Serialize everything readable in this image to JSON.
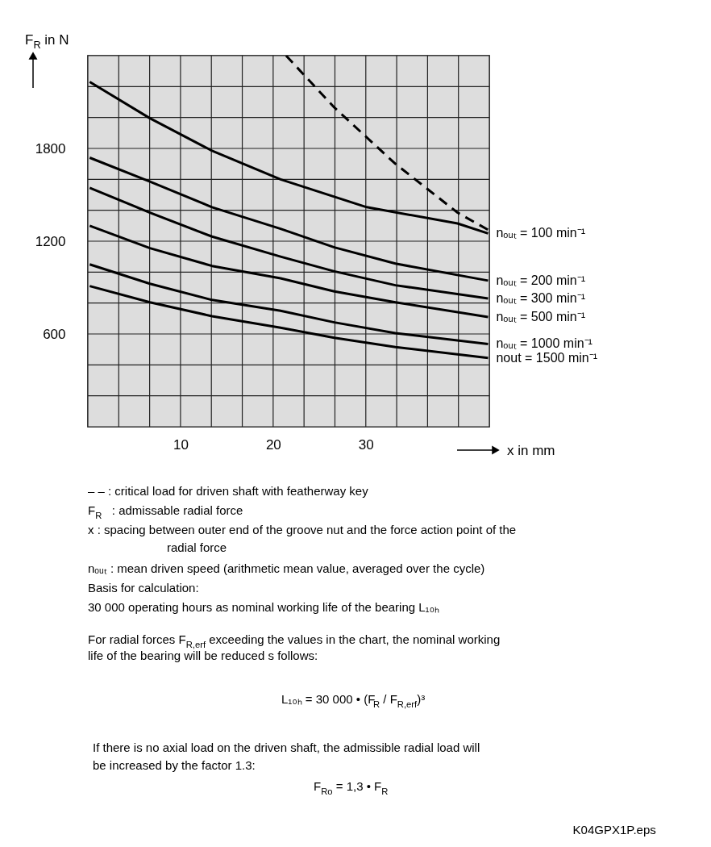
{
  "chart_data": {
    "type": "line",
    "xlabel": "x in mm",
    "ylabel": "F$_{R}$ in N",
    "xlim": [
      0,
      43.333
    ],
    "ylim": [
      0,
      2400
    ],
    "xticks": [
      {
        "value": 0,
        "label": null
      },
      {
        "value": 3.333,
        "label": null
      },
      {
        "value": 6.667,
        "label": null
      },
      10,
      {
        "value": 13.333,
        "label": null
      },
      {
        "value": 16.667,
        "label": null
      },
      20,
      {
        "value": 23.333,
        "label": null
      },
      {
        "value": 26.667,
        "label": null
      },
      30,
      {
        "value": 33.333,
        "label": null
      },
      {
        "value": 36.667,
        "label": null
      },
      {
        "value": 40,
        "label": null
      },
      {
        "value": 43.333,
        "label": null
      }
    ],
    "yticks": [
      {
        "value": 0,
        "label": null
      },
      {
        "value": 200,
        "label": null
      },
      {
        "value": 400,
        "label": null
      },
      600,
      {
        "value": 800,
        "label": null
      },
      {
        "value": 1000,
        "label": null
      },
      1200,
      {
        "value": 1400,
        "label": null
      },
      {
        "value": 1600,
        "label": null
      },
      1800,
      {
        "value": 2000,
        "label": null
      },
      {
        "value": 2200,
        "label": null
      },
      {
        "value": 2400,
        "label": null
      }
    ],
    "grid": true,
    "legend": false,
    "marker": "none",
    "series": [
      {
        "name": "nₒᵤₜ = 100 min⁻¹",
        "color": "#000000",
        "line_style": "solid",
        "x": [
          0.2,
          6.7,
          13.4,
          20.8,
          30.1,
          39.9,
          43.2
        ],
        "values": [
          2230,
          1995,
          1785,
          1600,
          1420,
          1315,
          1250
        ]
      },
      {
        "name": "nₒᵤₜ = 200 min⁻¹",
        "color": "#000000",
        "line_style": "solid",
        "x": [
          0.2,
          6.7,
          13.4,
          20.8,
          26.6,
          33.2,
          43.2
        ],
        "values": [
          1740,
          1585,
          1420,
          1280,
          1160,
          1055,
          945
        ]
      },
      {
        "name": "nₒᵤₜ = 300 min⁻¹",
        "color": "#000000",
        "line_style": "solid",
        "x": [
          0.2,
          6.7,
          13.4,
          20.8,
          26.6,
          33.2,
          43.2
        ],
        "values": [
          1545,
          1385,
          1230,
          1100,
          1005,
          915,
          830
        ]
      },
      {
        "name": "nₒᵤₜ = 500 min⁻¹",
        "color": "#000000",
        "line_style": "solid",
        "x": [
          0.2,
          6.7,
          13.4,
          20.8,
          26.6,
          33.2,
          43.2
        ],
        "values": [
          1300,
          1155,
          1040,
          960,
          875,
          805,
          710
        ]
      },
      {
        "name": "nₒᵤₜ = 1000 min⁻¹",
        "color": "#000000",
        "line_style": "solid",
        "x": [
          0.2,
          6.7,
          13.4,
          20.8,
          26.6,
          33.2,
          43.2
        ],
        "values": [
          1050,
          925,
          820,
          750,
          675,
          605,
          535
        ]
      },
      {
        "name": "nout = 1500 min⁻¹",
        "color": "#000000",
        "line_style": "solid",
        "x": [
          0.2,
          6.7,
          13.4,
          20.8,
          26.6,
          33.2,
          43.2
        ],
        "values": [
          910,
          805,
          715,
          640,
          575,
          515,
          445
        ]
      },
      {
        "color": "#000000",
        "line_style": "dashed",
        "x": [
          21.4,
          26.6,
          33.2,
          39.9,
          43.3
        ],
        "values": [
          2400,
          2065,
          1700,
          1385,
          1270
        ]
      }
    ],
    "annotations": [
      "– – : critical load for driven shaft with featherway key",
      "F$_{R}$   : admissable radial force",
      "x      : spacing between outer end of the groove nut and the force action point of the",
      "radial force",
      "nₒᵤₜ : mean driven speed (arithmetic mean value, averaged over the cycle)",
      "Basis for calculation:",
      "30 000  operating hours as nominal working life of the bearing L₁₀ₕ",
      "For radial forces F$_{R,erf}$ exceeding the values in the chart, the nominal working",
      "life of the bearing will be reduced s follows:",
      "L₁₀ₕ = 30 000 • (F$_{R}$ / F$_{R,erf}$)³",
      "If there is no axial load on the driven shaft, the admissible radial load will",
      "be increased by the factor 1.3:",
      "F$_{Ro}$ = 1,3 • F$_{R}$",
      "K04GPX1P.eps"
    ]
  }
}
